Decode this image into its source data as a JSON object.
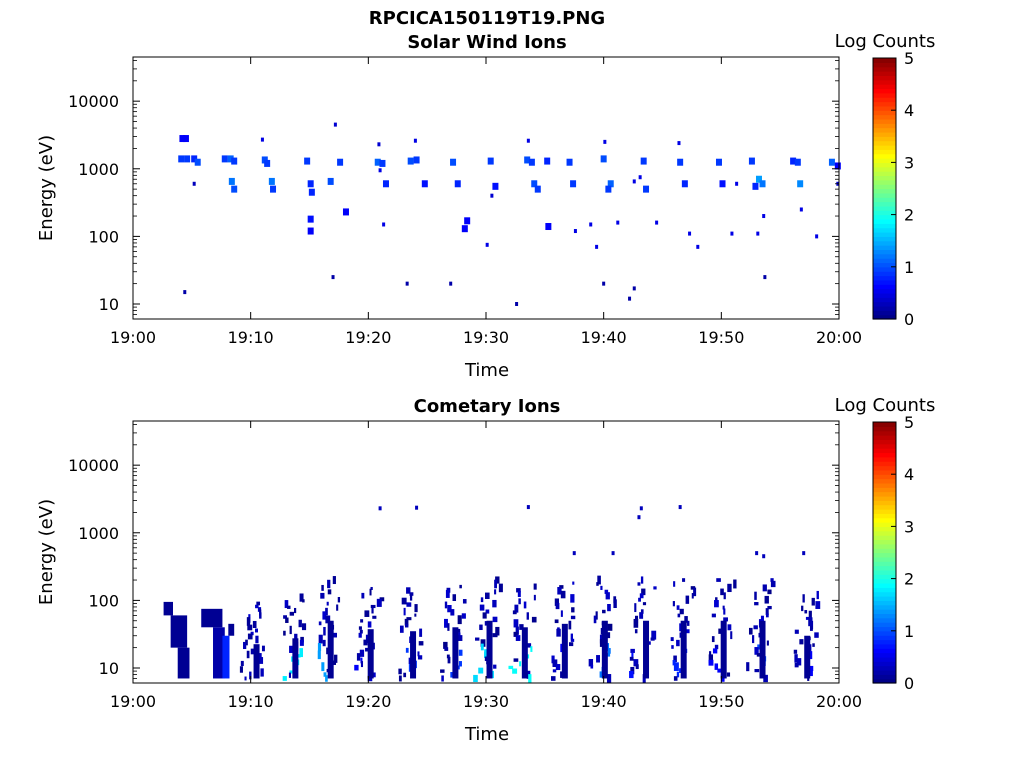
{
  "figure_title": "RPCICA150119T19.PNG",
  "colorbar": {
    "label": "Log Counts",
    "ticks": [
      "0",
      "1",
      "2",
      "3",
      "4",
      "5"
    ]
  },
  "colors": {
    "background": "#ffffff",
    "axis": "#000000",
    "colormap": [
      "#00007f",
      "#0000ff",
      "#007fff",
      "#00ffff",
      "#7fff7f",
      "#ffff00",
      "#ff7f00",
      "#ff0000",
      "#7f0000"
    ]
  },
  "chart_data": [
    {
      "type": "heatmap",
      "title": "Solar Wind Ions",
      "xlabel": "Time",
      "ylabel": "Energy (eV)",
      "x_ticks": [
        "19:00",
        "19:10",
        "19:20",
        "19:30",
        "19:40",
        "19:50",
        "20:00"
      ],
      "x_range_min": [
        0,
        60
      ],
      "y_ticks": [
        "10",
        "100",
        "1000",
        "10000"
      ],
      "y_scale": "log",
      "ylim": [
        6,
        45000
      ],
      "color_range": [
        0,
        5
      ],
      "color_label": "Log Counts",
      "grid": false,
      "points": [
        [
          4.2,
          2800,
          0.6
        ],
        [
          4.5,
          2800,
          0.6
        ],
        [
          4.1,
          1400,
          0.9
        ],
        [
          4.6,
          1400,
          0.9
        ],
        [
          5.2,
          1400,
          0.8
        ],
        [
          5.5,
          1250,
          1.0
        ],
        [
          5.2,
          600,
          0.3
        ],
        [
          7.8,
          1400,
          0.9
        ],
        [
          8.3,
          1400,
          1.1
        ],
        [
          8.6,
          1300,
          0.9
        ],
        [
          8.4,
          650,
          1.2
        ],
        [
          8.6,
          500,
          1.0
        ],
        [
          11.0,
          2700,
          0.5
        ],
        [
          11.2,
          1350,
          1.0
        ],
        [
          11.4,
          1200,
          0.9
        ],
        [
          11.8,
          650,
          1.2
        ],
        [
          11.9,
          500,
          0.9
        ],
        [
          14.8,
          1300,
          0.9
        ],
        [
          15.1,
          600,
          0.8
        ],
        [
          15.2,
          450,
          0.8
        ],
        [
          15.1,
          180,
          0.7
        ],
        [
          15.1,
          120,
          0.6
        ],
        [
          16.8,
          650,
          1.0
        ],
        [
          17.2,
          4500,
          0.4
        ],
        [
          17.6,
          1250,
          0.9
        ],
        [
          18.1,
          230,
          0.6
        ],
        [
          20.9,
          2300,
          0.4
        ],
        [
          20.8,
          1250,
          1.1
        ],
        [
          21.2,
          1200,
          0.9
        ],
        [
          21.5,
          600,
          0.8
        ],
        [
          21.0,
          950,
          0.5
        ],
        [
          21.3,
          150,
          0.5
        ],
        [
          23.6,
          1300,
          1.0
        ],
        [
          24.1,
          1350,
          0.9
        ],
        [
          24.0,
          2600,
          0.5
        ],
        [
          24.8,
          600,
          0.7
        ],
        [
          27.2,
          1250,
          1.0
        ],
        [
          27.6,
          600,
          0.8
        ],
        [
          28.4,
          170,
          0.6
        ],
        [
          28.2,
          130,
          0.6
        ],
        [
          30.4,
          1300,
          0.9
        ],
        [
          30.8,
          550,
          0.7
        ],
        [
          30.1,
          75,
          0.5
        ],
        [
          30.5,
          400,
          0.4
        ],
        [
          33.6,
          2600,
          0.5
        ],
        [
          33.5,
          1350,
          1.0
        ],
        [
          33.9,
          1250,
          0.9
        ],
        [
          34.1,
          600,
          1.0
        ],
        [
          34.4,
          500,
          0.9
        ],
        [
          35.2,
          1300,
          0.8
        ],
        [
          35.3,
          140,
          0.6
        ],
        [
          37.1,
          1250,
          0.9
        ],
        [
          37.4,
          600,
          0.9
        ],
        [
          37.6,
          120,
          0.5
        ],
        [
          38.9,
          150,
          0.5
        ],
        [
          39.4,
          70,
          0.5
        ],
        [
          40.1,
          2500,
          0.5
        ],
        [
          40.0,
          1400,
          1.0
        ],
        [
          40.6,
          600,
          1.1
        ],
        [
          40.4,
          500,
          0.9
        ],
        [
          41.2,
          160,
          0.5
        ],
        [
          42.6,
          650,
          0.5
        ],
        [
          43.4,
          1300,
          0.9
        ],
        [
          43.1,
          750,
          0.5
        ],
        [
          43.6,
          500,
          0.9
        ],
        [
          44.5,
          160,
          0.5
        ],
        [
          46.4,
          2400,
          0.5
        ],
        [
          46.5,
          1250,
          0.9
        ],
        [
          46.9,
          600,
          0.8
        ],
        [
          47.3,
          110,
          0.5
        ],
        [
          48.0,
          70,
          0.5
        ],
        [
          49.8,
          1250,
          0.9
        ],
        [
          50.1,
          600,
          0.7
        ],
        [
          50.9,
          110,
          0.5
        ],
        [
          51.3,
          600,
          0.5
        ],
        [
          52.6,
          1300,
          0.9
        ],
        [
          52.9,
          550,
          0.8
        ],
        [
          53.2,
          700,
          1.4
        ],
        [
          53.5,
          600,
          1.2
        ],
        [
          53.1,
          110,
          0.5
        ],
        [
          53.6,
          200,
          0.5
        ],
        [
          56.1,
          1300,
          0.8
        ],
        [
          56.5,
          1250,
          0.9
        ],
        [
          56.7,
          600,
          1.3
        ],
        [
          56.8,
          250,
          0.5
        ],
        [
          58.1,
          100,
          0.5
        ],
        [
          59.4,
          1250,
          1.1
        ],
        [
          59.9,
          1100,
          0.6
        ],
        [
          59.9,
          600,
          0.4
        ],
        [
          4.4,
          15,
          0.2
        ],
        [
          17.0,
          25,
          0.2
        ],
        [
          23.3,
          20,
          0.2
        ],
        [
          27.0,
          20,
          0.2
        ],
        [
          32.6,
          10,
          0.2
        ],
        [
          40.0,
          20,
          0.2
        ],
        [
          42.2,
          12,
          0.2
        ],
        [
          42.6,
          17,
          0.2
        ],
        [
          53.7,
          25,
          0.2
        ]
      ]
    },
    {
      "type": "heatmap",
      "title": "Cometary Ions",
      "xlabel": "Time",
      "ylabel": "Energy (eV)",
      "x_ticks": [
        "19:00",
        "19:10",
        "19:20",
        "19:30",
        "19:40",
        "19:50",
        "20:00"
      ],
      "x_range_min": [
        0,
        60
      ],
      "y_ticks": [
        "10",
        "100",
        "1000",
        "10000"
      ],
      "y_scale": "log",
      "ylim": [
        6,
        45000
      ],
      "color_range": [
        0,
        5
      ],
      "color_label": "Log Counts",
      "grid": false,
      "bursts": [
        {
          "t": 10.5,
          "e_top": 90,
          "e_bot": 7,
          "core_lc": 0.3
        },
        {
          "t": 13.8,
          "e_top": 110,
          "e_bot": 7,
          "core_lc": 1.8
        },
        {
          "t": 16.8,
          "e_top": 200,
          "e_bot": 7,
          "core_lc": 1.4
        },
        {
          "t": 20.2,
          "e_top": 150,
          "e_bot": 7,
          "core_lc": 0.6
        },
        {
          "t": 23.8,
          "e_top": 140,
          "e_bot": 7,
          "core_lc": 0.9
        },
        {
          "t": 27.4,
          "e_top": 160,
          "e_bot": 7,
          "core_lc": 0.9
        },
        {
          "t": 30.3,
          "e_top": 200,
          "e_bot": 7,
          "core_lc": 1.7
        },
        {
          "t": 33.3,
          "e_top": 160,
          "e_bot": 7,
          "core_lc": 1.9
        },
        {
          "t": 36.7,
          "e_top": 180,
          "e_bot": 7,
          "core_lc": 0.6
        },
        {
          "t": 40.1,
          "e_top": 200,
          "e_bot": 7,
          "core_lc": 1.2
        },
        {
          "t": 43.6,
          "e_top": 200,
          "e_bot": 7,
          "core_lc": 0.7
        },
        {
          "t": 46.8,
          "e_top": 200,
          "e_bot": 7,
          "core_lc": 0.8
        },
        {
          "t": 50.2,
          "e_top": 200,
          "e_bot": 7,
          "core_lc": 0.6
        },
        {
          "t": 53.5,
          "e_top": 200,
          "e_bot": 7,
          "core_lc": 1.0
        },
        {
          "t": 57.3,
          "e_top": 120,
          "e_bot": 7,
          "core_lc": 0.6
        }
      ],
      "blocks": [
        {
          "t0": 2.6,
          "t1": 3.4,
          "e_top": 95,
          "e_bot": 60,
          "lc": 0.1
        },
        {
          "t0": 3.2,
          "t1": 4.6,
          "e_top": 60,
          "e_bot": 20,
          "lc": 0.1
        },
        {
          "t0": 3.8,
          "t1": 4.8,
          "e_top": 20,
          "e_bot": 7,
          "lc": 0.1
        },
        {
          "t0": 5.8,
          "t1": 7.6,
          "e_top": 75,
          "e_bot": 40,
          "lc": 0.1
        },
        {
          "t0": 6.8,
          "t1": 7.8,
          "e_top": 40,
          "e_bot": 7,
          "lc": 0.2
        },
        {
          "t0": 7.6,
          "t1": 8.2,
          "e_top": 30,
          "e_bot": 7,
          "lc": 0.8
        },
        {
          "t0": 8.1,
          "t1": 8.6,
          "e_top": 45,
          "e_bot": 30,
          "lc": 0.1
        }
      ],
      "points": [
        [
          21.0,
          2300,
          0.3
        ],
        [
          24.1,
          2350,
          0.3
        ],
        [
          33.6,
          2400,
          0.3
        ],
        [
          37.5,
          500,
          0.3
        ],
        [
          40.8,
          500,
          0.3
        ],
        [
          43.2,
          2300,
          0.3
        ],
        [
          43.0,
          1700,
          0.3
        ],
        [
          46.5,
          2400,
          0.3
        ],
        [
          53.0,
          500,
          0.3
        ],
        [
          53.6,
          450,
          0.3
        ],
        [
          57.0,
          500,
          0.3
        ]
      ]
    }
  ]
}
